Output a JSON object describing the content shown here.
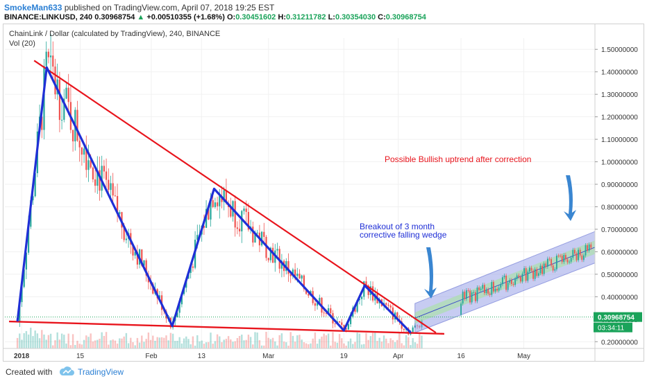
{
  "header": {
    "author": "SmokeMan633",
    "published": "published on TradingView.com, April 07, 2018 19:25 EST",
    "symbol": "BINANCE:LINKUSD, 240",
    "last": "0.30968754",
    "change": "+0.00510355 (+1.68%)",
    "o_label": "O:",
    "o_val": "0.30451602",
    "h_label": "H:",
    "h_val": "0.31211782",
    "l_label": "L:",
    "l_val": "0.30354030",
    "c_label": "C:",
    "c_val": "0.30968754"
  },
  "chart_data": {
    "type": "candlestick",
    "title": "ChainLink / Dollar (calculated by TradingView), 240, BINANCE",
    "volume_label": "Vol (20)",
    "y_ticks": [
      "1.50000000",
      "1.40000000",
      "1.30000000",
      "1.20000000",
      "1.10000000",
      "1.00000000",
      "0.90000000",
      "0.80000000",
      "0.70000000",
      "0.60000000",
      "0.50000000",
      "0.40000000",
      "0.30000000",
      "0.20000000"
    ],
    "x_ticks": [
      "2018",
      "15",
      "Feb",
      "13",
      "Mar",
      "19",
      "Apr",
      "16",
      "May"
    ],
    "ylim": [
      0.17,
      1.55
    ],
    "price_badge": "0.30968754",
    "time_badge": "03:34:11",
    "price_key_points": [
      {
        "date": "2017-12-31",
        "price": 0.29
      },
      {
        "date": "2018-01-07",
        "price": 1.42
      },
      {
        "date": "2018-02-06",
        "price": 0.27
      },
      {
        "date": "2018-02-16",
        "price": 0.88
      },
      {
        "date": "2018-03-19",
        "price": 0.25
      },
      {
        "date": "2018-03-24",
        "price": 0.45
      },
      {
        "date": "2018-04-04",
        "price": 0.24
      },
      {
        "date": "2018-04-07",
        "price": 0.31
      }
    ],
    "annotations": {
      "breakout_line1": "Breakout of 3 month",
      "breakout_line2": "corrective falling wedge",
      "outlook": "Possible Bullish uptrend after correction"
    },
    "colors": {
      "up": "#26a69a",
      "down": "#ef5350",
      "wedge_lines": "#e8141c",
      "zigzag": "#1f2fd6",
      "arrow": "#3a86d1",
      "channel_fill": "#9aa4e8",
      "channel_inner": "#a6e3a0",
      "badge_green": "#1aa35a",
      "breakout_text": "#1f2fd6",
      "outlook_text": "#e8141c"
    }
  },
  "footer": {
    "created": "Created with",
    "brand": "TradingView"
  }
}
